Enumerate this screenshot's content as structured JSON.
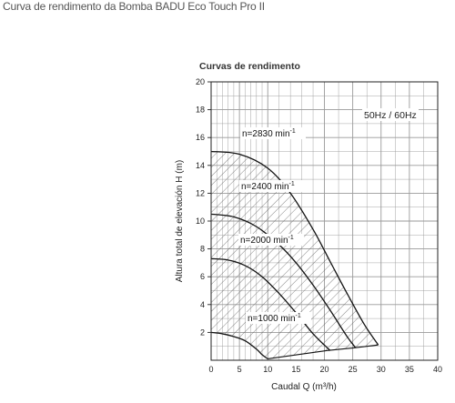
{
  "page": {
    "caption": "Curva de rendimento da Bomba BADU Eco Touch Pro II"
  },
  "chart_data": {
    "type": "line",
    "title": "Curvas de rendimento",
    "annotation": "50Hz / 60Hz",
    "xlabel": "Caudal  Q (m³/h)",
    "ylabel": "Altura total de elevación H (m)",
    "xlim": [
      0,
      40
    ],
    "ylim": [
      0,
      20
    ],
    "x_ticks": [
      0,
      5,
      10,
      15,
      20,
      25,
      30,
      35,
      40
    ],
    "y_ticks": [
      2,
      4,
      6,
      8,
      10,
      12,
      14,
      16,
      18,
      20
    ],
    "grid": true,
    "hatched_region": "area under the n=2830 curve, above the 1000 curve and left of the efficiency boundary",
    "series": [
      {
        "name": "n=1000 min",
        "label_main": "n=1000 min",
        "label_sup": "-1",
        "x": [
          0,
          2,
          4,
          6,
          8,
          9,
          10
        ],
        "y": [
          2.0,
          1.9,
          1.7,
          1.4,
          0.8,
          0.4,
          0.1
        ]
      },
      {
        "name": "n=2000 min",
        "label_main": "n=2000 min",
        "label_sup": "-1",
        "x": [
          0,
          3,
          6,
          9,
          12,
          15,
          18,
          21
        ],
        "y": [
          7.3,
          7.2,
          6.8,
          6.0,
          4.8,
          3.4,
          1.9,
          0.7
        ]
      },
      {
        "name": "n=2400 min",
        "label_main": "n=2400 min",
        "label_sup": "-1",
        "x": [
          0,
          4,
          8,
          12,
          15,
          18,
          21,
          24,
          25.5
        ],
        "y": [
          10.5,
          10.3,
          9.6,
          8.3,
          7.0,
          5.4,
          3.6,
          1.7,
          0.9
        ]
      },
      {
        "name": "n=2830 min",
        "label_main": "n=2830 min",
        "label_sup": "-1",
        "x": [
          0,
          5,
          10,
          14,
          18,
          21,
          24,
          27,
          29.5
        ],
        "y": [
          15.0,
          14.8,
          13.8,
          12.0,
          9.4,
          7.1,
          4.8,
          2.6,
          1.1
        ]
      }
    ],
    "boundary": {
      "x": [
        10,
        20.5,
        25.5,
        29.5
      ],
      "y": [
        0.1,
        0.7,
        0.9,
        1.1
      ]
    }
  }
}
